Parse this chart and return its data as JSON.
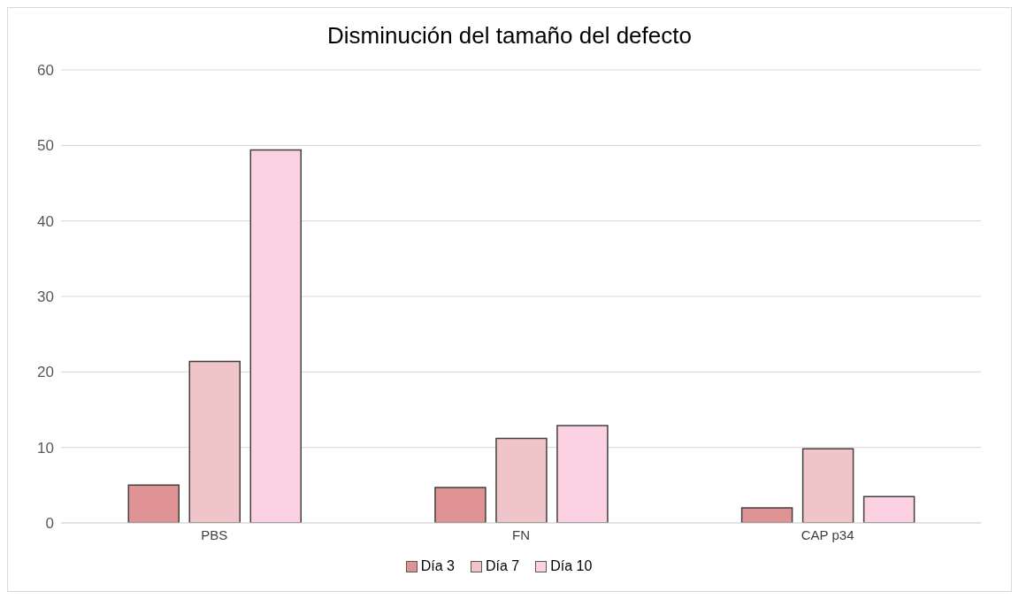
{
  "chart_data": {
    "type": "bar",
    "title": "Disminución del tamaño del defecto",
    "categories": [
      "PBS",
      "FN",
      "CAP p34"
    ],
    "series": [
      {
        "name": "Día 3",
        "color": "#e09394",
        "values": [
          5.0,
          4.7,
          2.0
        ]
      },
      {
        "name": "Día 7",
        "color": "#f0c5ca",
        "values": [
          21.4,
          11.2,
          9.8
        ]
      },
      {
        "name": "Día 10",
        "color": "#fcd2e2",
        "values": [
          49.4,
          12.9,
          3.5
        ]
      }
    ],
    "ylim": [
      0,
      60
    ],
    "yticks": [
      0,
      10,
      20,
      30,
      40,
      50,
      60
    ],
    "grid": "y",
    "legend": "bottom"
  }
}
